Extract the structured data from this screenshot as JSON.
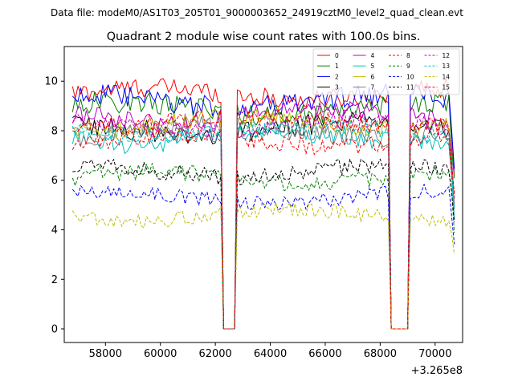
{
  "figure": {
    "suptitle": "Data file: modeM0/AS1T03_205T01_9000003652_24919cztM0_level2_quad_clean.evt"
  },
  "chart_data": {
    "type": "line",
    "title": "Quadrant 2 module wise count rates with 100.0s bins.",
    "xlabel": "",
    "ylabel": "",
    "x_offset_label": "+3.265e8",
    "xlim": [
      56500,
      71000
    ],
    "ylim": [
      -0.55,
      11.4
    ],
    "xticks": [
      58000,
      60000,
      62000,
      64000,
      66000,
      68000,
      70000
    ],
    "xtick_labels": [
      "58000",
      "60000",
      "62000",
      "64000",
      "66000",
      "68000",
      "70000"
    ],
    "yticks": [
      0,
      2,
      4,
      6,
      8,
      10
    ],
    "ytick_labels": [
      "0",
      "2",
      "4",
      "6",
      "8",
      "10"
    ],
    "grid": false,
    "legend_position": "top-right",
    "x_start": 56800,
    "bin_width": 100,
    "n_bins": 140,
    "gap_intervals": [
      [
        62300,
        62700
      ],
      [
        68400,
        69000
      ]
    ],
    "series": [
      {
        "name": "0",
        "color": "#ff0000",
        "dashed": false,
        "mean": 9.5,
        "amp": 0.4
      },
      {
        "name": "1",
        "color": "#008000",
        "dashed": false,
        "mean": 8.9,
        "amp": 0.45
      },
      {
        "name": "2",
        "color": "#0000ff",
        "dashed": false,
        "mean": 9.2,
        "amp": 0.45
      },
      {
        "name": "3",
        "color": "#000000",
        "dashed": false,
        "mean": 8.1,
        "amp": 0.45
      },
      {
        "name": "4",
        "color": "#bf00bf",
        "dashed": false,
        "mean": 8.6,
        "amp": 0.4
      },
      {
        "name": "5",
        "color": "#00bfbf",
        "dashed": false,
        "mean": 7.7,
        "amp": 0.4
      },
      {
        "name": "6",
        "color": "#bfbf00",
        "dashed": false,
        "mean": 8.3,
        "amp": 0.4
      },
      {
        "name": "7",
        "color": "#808080",
        "dashed": false,
        "mean": 8.0,
        "amp": 0.4
      },
      {
        "name": "8",
        "color": "#ff0000",
        "dashed": true,
        "mean": 7.6,
        "amp": 0.35
      },
      {
        "name": "9",
        "color": "#008000",
        "dashed": true,
        "mean": 6.1,
        "amp": 0.35
      },
      {
        "name": "10",
        "color": "#0000ff",
        "dashed": true,
        "mean": 5.3,
        "amp": 0.3
      },
      {
        "name": "11",
        "color": "#000000",
        "dashed": true,
        "mean": 6.4,
        "amp": 0.35
      },
      {
        "name": "12",
        "color": "#bf00bf",
        "dashed": true,
        "mean": 8.2,
        "amp": 0.35
      },
      {
        "name": "13",
        "color": "#00bfbf",
        "dashed": true,
        "mean": 8.0,
        "amp": 0.35
      },
      {
        "name": "14",
        "color": "#bfbf00",
        "dashed": true,
        "mean": 4.6,
        "amp": 0.3
      },
      {
        "name": "15",
        "color": "#ff0000",
        "dashed": true,
        "mean": 8.4,
        "amp": 0.35
      }
    ]
  }
}
